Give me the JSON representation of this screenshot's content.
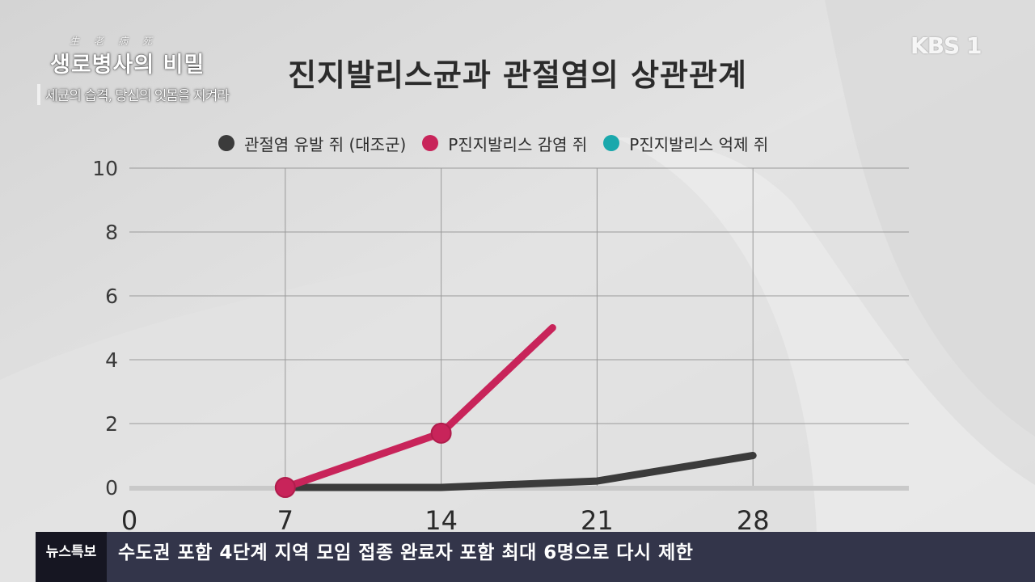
{
  "program": {
    "hanja": "生老病死",
    "title": "생로병사의 비밀",
    "subtitle": "세균의 습격, 당신의 잇몸을 지켜라"
  },
  "channel": {
    "logo_text": "KBS 1"
  },
  "news_ticker": {
    "tag": "뉴스특보",
    "headline": "수도권 포함 4단계 지역 모임 접종 완료자 포함 최대 6명으로 다시 제한"
  },
  "chart_data": {
    "type": "line",
    "title": "진지발리스균과 관절염의 상관관계",
    "xlabel": "",
    "ylabel": "",
    "x_ticks": [
      0,
      7,
      14,
      21,
      28
    ],
    "y_ticks": [
      0,
      2,
      4,
      6,
      8,
      10
    ],
    "xlim": [
      0,
      35
    ],
    "ylim": [
      0,
      10
    ],
    "grid": true,
    "legend_position": "top",
    "series": [
      {
        "name": "관절염 유발 쥐 (대조군)",
        "color": "#3b3b3b",
        "x": [
          7,
          14,
          21,
          28
        ],
        "y": [
          0,
          0,
          0.2,
          1.0
        ],
        "markers": false
      },
      {
        "name": "P진지발리스 감염 쥐",
        "color": "#c8245a",
        "x": [
          7,
          14,
          19
        ],
        "y": [
          0,
          1.7,
          5.0
        ],
        "markers": [
          7,
          14
        ]
      },
      {
        "name": "P진지발리스 억제 쥐",
        "color": "#1aa8ac",
        "x": [],
        "y": [],
        "markers": false
      }
    ]
  }
}
